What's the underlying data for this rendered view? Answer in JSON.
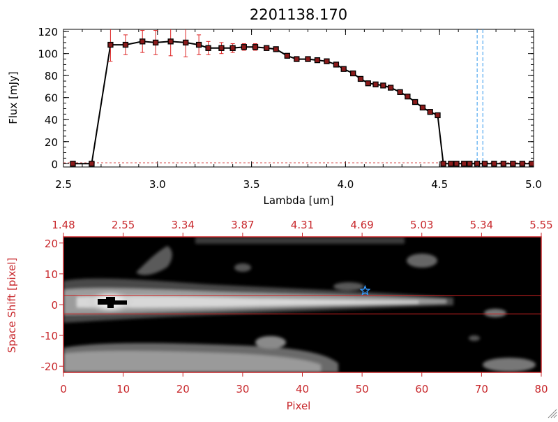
{
  "colors": {
    "axis": "#000000",
    "red_axis": "#c8282c",
    "error_bar": "#dd2222",
    "marker_fill": "#8b1a1a",
    "line": "#000000",
    "cut_line": "#cc2222",
    "dashed_line": "#3399ee",
    "star": "#3399ff"
  },
  "chart_data": [
    {
      "type": "line",
      "title": "2201138.170",
      "xlabel": "Lambda [um]",
      "ylabel": "Flux [mJy]",
      "xlim": [
        2.5,
        5.0
      ],
      "ylim": [
        -3,
        122
      ],
      "xticks": [
        "2.5",
        "3.0",
        "3.5",
        "4.0",
        "4.5",
        "5.0"
      ],
      "yticks": [
        "0",
        "20",
        "40",
        "60",
        "80",
        "100",
        "120"
      ],
      "grid": false,
      "vertical_dashed_lines": [
        4.7,
        4.73
      ],
      "series": [
        {
          "x": [
            2.55,
            2.65,
            2.75,
            2.83,
            2.92,
            2.99,
            3.07,
            3.15,
            3.22,
            3.27,
            3.34,
            3.4,
            3.46,
            3.52,
            3.58,
            3.63,
            3.69,
            3.74,
            3.8,
            3.85,
            3.9,
            3.95,
            3.99,
            4.04,
            4.08,
            4.12,
            4.16,
            4.2,
            4.24,
            4.29,
            4.33,
            4.37,
            4.41,
            4.45,
            4.49,
            4.52,
            4.56,
            4.59,
            4.63,
            4.66,
            4.7,
            4.74,
            4.79,
            4.84,
            4.89,
            4.94,
            4.99
          ],
          "y": [
            0,
            0,
            108,
            108,
            111,
            110,
            111,
            110,
            108,
            105,
            105,
            105,
            106,
            106,
            105,
            104,
            98,
            95,
            95,
            94,
            93,
            90,
            86,
            82,
            77,
            73,
            72,
            71,
            69,
            65,
            61,
            56,
            51,
            47,
            44,
            0,
            0,
            0,
            0,
            0,
            0,
            0,
            0,
            0,
            0,
            0,
            0
          ],
          "yerr": [
            0,
            0,
            15,
            9,
            10,
            11,
            13,
            13,
            9,
            6,
            5,
            4,
            3,
            3,
            2,
            2,
            2,
            2,
            2,
            2,
            2,
            2,
            2,
            2,
            2,
            2,
            2,
            2,
            2,
            2,
            2,
            2,
            2,
            2,
            2,
            0,
            0,
            0,
            0,
            0,
            0,
            0,
            0,
            0,
            0,
            0,
            0
          ]
        }
      ]
    },
    {
      "type": "heatmap",
      "xlabel": "Pixel",
      "ylabel": "Space Shift [pixel]",
      "xlim": [
        0,
        80
      ],
      "ylim": [
        -22,
        22
      ],
      "xticks": [
        "0",
        "10",
        "20",
        "30",
        "40",
        "50",
        "60",
        "70",
        "80"
      ],
      "yticks": [
        "-20",
        "-10",
        "0",
        "10",
        "20"
      ],
      "top_axis_labels": [
        "1.48",
        "2.55",
        "3.34",
        "3.87",
        "4.31",
        "4.69",
        "5.03",
        "5.34",
        "5.55"
      ],
      "extraction_window": [
        -3,
        3
      ],
      "star_marker": [
        50.5,
        4.5
      ],
      "grid": false
    }
  ]
}
